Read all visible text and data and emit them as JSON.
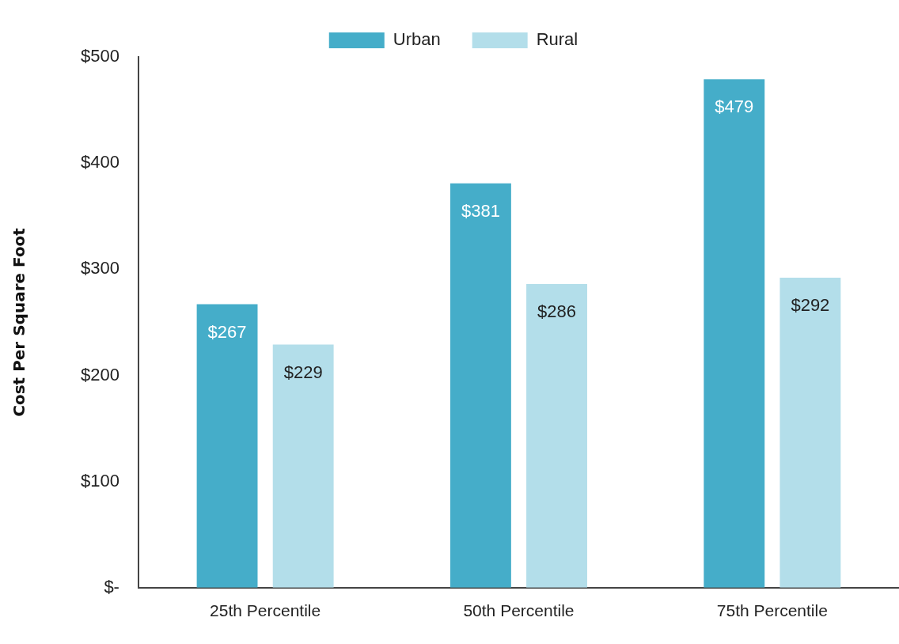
{
  "chart_data": {
    "type": "bar",
    "ylabel": "Cost Per Square Foot",
    "categories": [
      "25th Percentile",
      "50th Percentile",
      "75th Percentile"
    ],
    "series": [
      {
        "name": "Urban",
        "color": "#45adc9",
        "values": [
          267,
          381,
          479
        ],
        "value_labels": [
          "$267",
          "$381",
          "$479"
        ]
      },
      {
        "name": "Rural",
        "color": "#b3deea",
        "values": [
          229,
          286,
          292
        ],
        "value_labels": [
          "$229",
          "$286",
          "$292"
        ]
      }
    ],
    "ylim": [
      0,
      500
    ],
    "yticks": [
      {
        "value": 0,
        "label": "$-"
      },
      {
        "value": 100,
        "label": "$100"
      },
      {
        "value": 200,
        "label": "$200"
      },
      {
        "value": 300,
        "label": "$300"
      },
      {
        "value": 400,
        "label": "$400"
      },
      {
        "value": 500,
        "label": "$500"
      }
    ],
    "grid": false,
    "legend": "top"
  }
}
